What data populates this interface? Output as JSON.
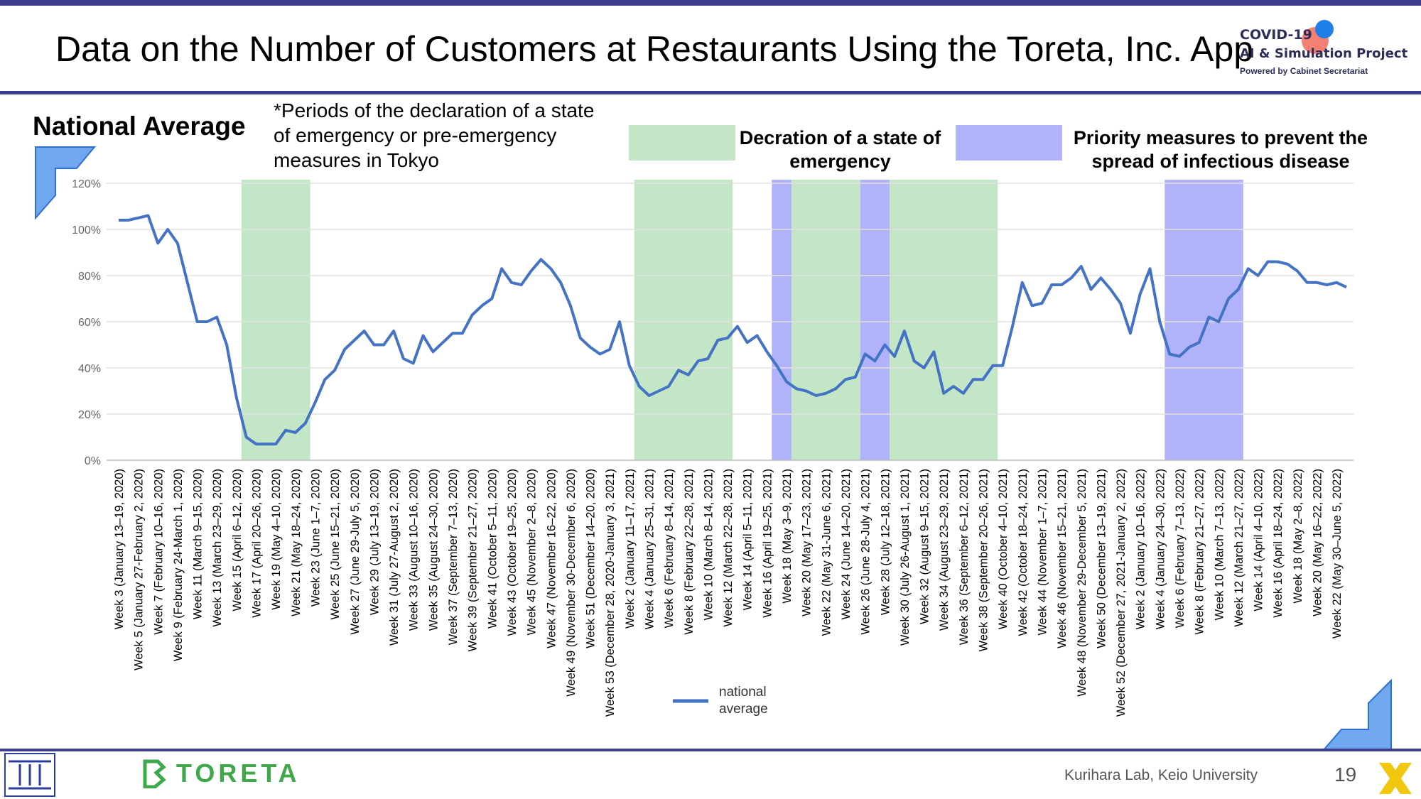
{
  "header": {
    "title": "Data on the Number of Customers at Restaurants Using the Toreta, Inc. App",
    "logo_line1": "COVID-19",
    "logo_line2": "AI & Simulation Project",
    "logo_line3": "Powered by Cabinet Secretariat"
  },
  "panel_title": "National Average",
  "periods_note": "*Periods of the declaration of a state of emergency or pre-emergency measures in Tokyo",
  "legend_boxes": {
    "green_label": "Decration of a state of emergency",
    "blue_label": "Priority measures to prevent the spread of infectious disease",
    "green_color": "#c2e6c6",
    "blue_color": "#b1b3fa"
  },
  "footer": {
    "brand": "TORETA",
    "lab": "Kurihara Lab, Keio University",
    "page": "19"
  },
  "chart_data": {
    "type": "line",
    "ylabel": "",
    "xlabel": "",
    "ylim": [
      0,
      120
    ],
    "yticks": [
      "0%",
      "20%",
      "40%",
      "60%",
      "80%",
      "100%",
      "120%"
    ],
    "grid": true,
    "line_color": "#4472c4",
    "series": [
      {
        "name": "national average",
        "values": [
          104,
          104,
          105,
          106,
          94,
          100,
          94,
          77,
          60,
          60,
          62,
          50,
          27,
          10,
          7,
          7,
          7,
          13,
          12,
          16,
          25,
          35,
          39,
          48,
          52,
          56,
          50,
          50,
          56,
          44,
          42,
          54,
          47,
          51,
          55,
          55,
          63,
          67,
          70,
          83,
          77,
          76,
          82,
          87,
          83,
          77,
          67,
          53,
          49,
          46,
          48,
          60,
          41,
          32,
          28,
          30,
          32,
          39,
          37,
          43,
          44,
          52,
          53,
          58,
          51,
          54,
          47,
          41,
          34,
          31,
          30,
          28,
          29,
          31,
          35,
          36,
          46,
          43,
          50,
          45,
          56,
          43,
          40,
          47,
          29,
          32,
          29,
          35,
          35,
          41,
          41,
          58,
          77,
          67,
          68,
          76,
          76,
          79,
          84,
          74,
          79,
          74,
          68,
          55,
          72,
          83,
          60,
          46,
          45,
          49,
          51,
          62,
          60,
          70,
          74,
          83,
          80,
          86,
          86,
          85,
          82,
          77,
          77,
          76,
          77,
          75
        ]
      }
    ],
    "shaded_periods": [
      {
        "kind": "emergency",
        "start_index": 13,
        "end_index": 20
      },
      {
        "kind": "emergency",
        "start_index": 53,
        "end_index": 63
      },
      {
        "kind": "priority",
        "start_index": 67,
        "end_index": 69
      },
      {
        "kind": "emergency",
        "start_index": 69,
        "end_index": 76
      },
      {
        "kind": "priority",
        "start_index": 76,
        "end_index": 79
      },
      {
        "kind": "emergency",
        "start_index": 79,
        "end_index": 90
      },
      {
        "kind": "priority",
        "start_index": 107,
        "end_index": 115
      }
    ],
    "x_tick_labels": [
      "Week 3 (January 13–19, 2020)",
      "Week 5 (January 27-February 2, 2020)",
      "Week 7 (February 10–16, 2020)",
      "Week 9 (February 24-March 1, 2020)",
      "Week 11 (March 9–15, 2020)",
      "Week 13 (March 23–29, 2020)",
      "Week 15 (April 6–12, 2020)",
      "Week 17 (April 20–26, 2020)",
      "Week 19 (May 4–10, 2020)",
      "Week 21 (May 18–24, 2020)",
      "Week 23 (June 1–7, 2020)",
      "Week 25 (June 15–21, 2020)",
      "Week 27 (June 29-July 5, 2020)",
      "Week 29 (July 13–19, 2020)",
      "Week 31 (July 27-August 2, 2020)",
      "Week 33 (August 10–16, 2020)",
      "Week 35 (August 24–30, 2020)",
      "Week 37 (September 7–13, 2020)",
      "Week 39 (September 21–27, 2020)",
      "Week 41 (October 5–11, 2020)",
      "Week 43 (October 19–25, 2020)",
      "Week 45 (November 2–8, 2020)",
      "Week 47 (November 16–22, 2020)",
      "Week 49 (November 30-December 6, 2020)",
      "Week 51 (December 14–20, 2020)",
      "Week 53 (December 28, 2020-January 3, 2021)",
      "Week 2 (January 11–17, 2021)",
      "Week 4 (January 25–31, 2021)",
      "Week 6 (February 8–14, 2021)",
      "Week 8 (February 22–28, 2021)",
      "Week 10 (March 8–14, 2021)",
      "Week 12 (March 22–28, 2021)",
      "Week 14 (April 5–11, 2021)",
      "Week 16 (April 19–25, 2021)",
      "Week 18 (May 3–9, 2021)",
      "Week 20 (May 17–23, 2021)",
      "Week 22 (May 31-June 6, 2021)",
      "Week 24 (June 14–20, 2021)",
      "Week 26 (June 28-July 4, 2021)",
      "Week 28 (July 12–18, 2021)",
      "Week 30 (July 26-August 1, 2021)",
      "Week 32 (August 9–15, 2021)",
      "Week 34 (August 23–29, 2021)",
      "Week 36 (September 6–12, 2021)",
      "Week 38 (September 20–26, 2021)",
      "Week 40 (October 4–10, 2021)",
      "Week 42 (October 18–24, 2021)",
      "Week 44 (November 1–7, 2021)",
      "Week 46 (November 15–21, 2021)",
      "Week 48 (November 29-December 5, 2021)",
      "Week 50 (December 13–19, 2021)",
      "Week 52 (December 27, 2021-January 2, 2022)",
      "Week 2 (January 10–16, 2022)",
      "Week 4 (January 24–30, 2022)",
      "Week 6 (February 7–13, 2022)",
      "Week 8 (February 21–27, 2022)",
      "Week 10 (March 7–13, 2022)",
      "Week 12 (March 21–27, 2022)",
      "Week 14 (April 4–10, 2022)",
      "Week 16 (April 18–24, 2022)",
      "Week 18 (May 2–8, 2022)",
      "Week 20 (May 16–22, 2022)",
      "Week 22 (May 30–June 5, 2022)"
    ],
    "legend": {
      "label": "national average",
      "placement": "bottom-center"
    }
  }
}
